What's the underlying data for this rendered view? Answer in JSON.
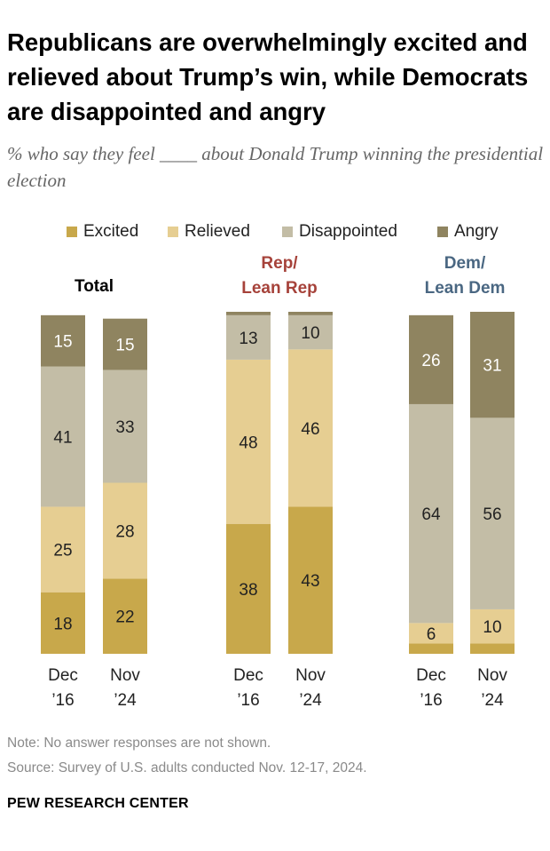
{
  "title": "Republicans are overwhelmingly excited and relieved about Trump’s win, while Democrats are disappointed and angry",
  "subtitle": "% who say they feel ____ about Donald Trump winning the presidential election",
  "legend": [
    {
      "label": "Excited",
      "color": "#C8A84B"
    },
    {
      "label": "Relieved",
      "color": "#E6CE92"
    },
    {
      "label": "Disappointed",
      "color": "#C3BDA6"
    },
    {
      "label": "Angry",
      "color": "#8F8460"
    }
  ],
  "chart_data": {
    "type": "bar",
    "stacked": true,
    "series_order": [
      "Excited",
      "Relieved",
      "Disappointed",
      "Angry"
    ],
    "colors": {
      "Excited": "#C8A84B",
      "Relieved": "#E6CE92",
      "Disappointed": "#C3BDA6",
      "Angry": "#8F8460"
    },
    "ylim": [
      0,
      100
    ],
    "groups": [
      {
        "label": [
          "Total"
        ],
        "label_color": "#000000",
        "bars": [
          {
            "line1": "Dec",
            "line2": "’16",
            "values": {
              "Excited": 18,
              "Relieved": 25,
              "Disappointed": 41,
              "Angry": 15
            }
          },
          {
            "line1": "Nov",
            "line2": "’24",
            "values": {
              "Excited": 22,
              "Relieved": 28,
              "Disappointed": 33,
              "Angry": 15
            }
          }
        ]
      },
      {
        "label": [
          "Rep/",
          "Lean Rep"
        ],
        "label_color": "#A6423A",
        "bars": [
          {
            "line1": "Dec",
            "line2": "’16",
            "values": {
              "Excited": 38,
              "Relieved": 48,
              "Disappointed": 13,
              "Angry": 1
            }
          },
          {
            "line1": "Nov",
            "line2": "’24",
            "values": {
              "Excited": 43,
              "Relieved": 46,
              "Disappointed": 10,
              "Angry": 1
            }
          }
        ]
      },
      {
        "label": [
          "Dem/",
          "Lean Dem"
        ],
        "label_color": "#4A6782",
        "bars": [
          {
            "line1": "Dec",
            "line2": "’16",
            "values": {
              "Excited": 3,
              "Relieved": 6,
              "Disappointed": 64,
              "Angry": 26
            }
          },
          {
            "line1": "Nov",
            "line2": "’24",
            "values": {
              "Excited": 3,
              "Relieved": 10,
              "Disappointed": 56,
              "Angry": 31
            }
          }
        ]
      }
    ]
  },
  "note": "Note: No answer responses are not shown.",
  "source": "Source: Survey of U.S. adults conducted Nov. 12-17, 2024.",
  "footer": "PEW RESEARCH CENTER"
}
